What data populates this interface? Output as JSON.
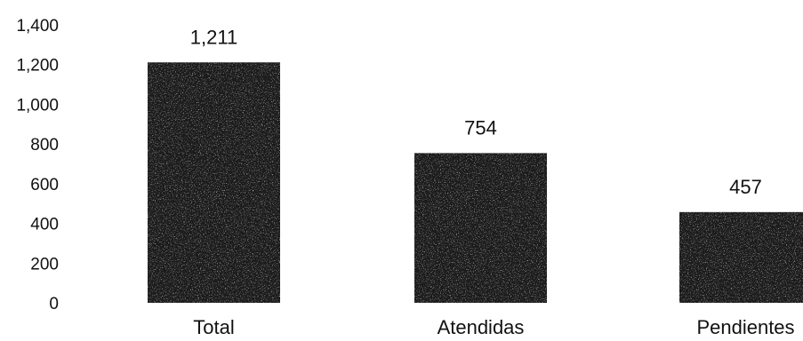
{
  "chart_data": {
    "type": "bar",
    "title": "",
    "xlabel": "",
    "ylabel": "",
    "categories": [
      "Total",
      "Atendidas",
      "Pendientes"
    ],
    "values": [
      1211,
      754,
      457
    ],
    "data_labels": [
      "1,211",
      "754",
      "457"
    ],
    "yticks": [
      0,
      200,
      400,
      600,
      800,
      1000,
      1200,
      1400
    ],
    "ytick_labels": [
      "0",
      "200",
      "400",
      "600",
      "800",
      "1,000",
      "1,200",
      "1,400"
    ],
    "ylim": [
      0,
      1400
    ],
    "grid": false,
    "legend": "none",
    "bar_color": "#1a1a1a"
  }
}
